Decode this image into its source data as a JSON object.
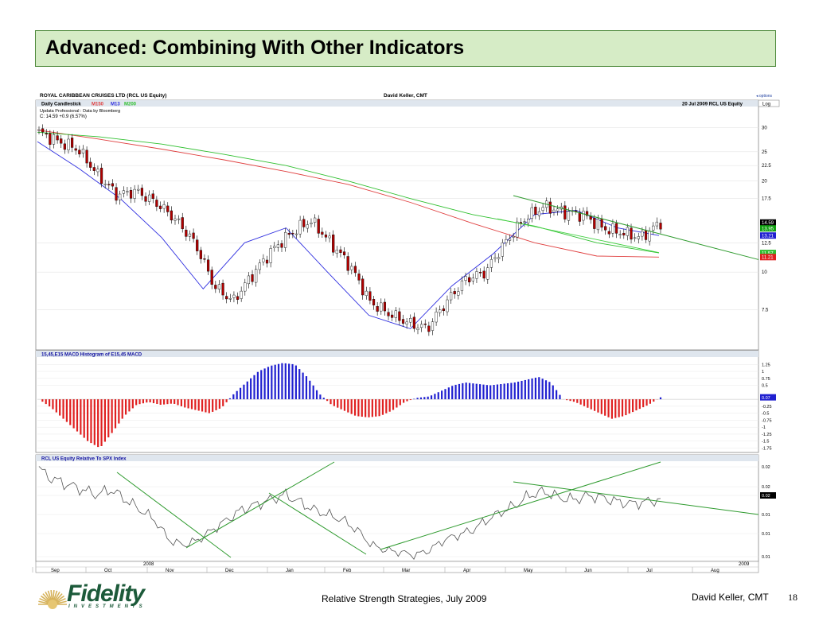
{
  "slide": {
    "title": "Advanced: Combining With Other Indicators",
    "footer_center": "Relative Strength Strategies, July 2009",
    "footer_right": "David Keller, CMT",
    "page_number": "18",
    "logo_word": "Fidelity",
    "logo_sub": "INVESTMENTS"
  },
  "colors": {
    "title_bg": "#d6ecc6",
    "title_border": "#4f8a3c",
    "up_candle": "#ffffff",
    "down_candle": "#b00000",
    "m150": "#e04040",
    "m13": "#3030e0",
    "m200": "#30c030",
    "trendline": "#2d9a2d",
    "macd_pos": "#2020d0",
    "macd_neg": "#e02020"
  },
  "chart_header": {
    "security": "ROYAL CARIBBEAN CRUISES LTD (RCL US Equity)",
    "author": "David Keller, CMT",
    "options": "◂ options",
    "chart_type": "Daily Candlestick",
    "m150_label": "M150",
    "m13_label": "M13",
    "m200_label": "M200",
    "date_stamp": "20 Jul 2009  RCL US Equity",
    "scale": "Log",
    "source": "Updata Professional : Data by Bloomberg",
    "last": "C: 14.59  +0.9 (6.57%)",
    "macd_title": "15,45,E15 MACD Histogram of E15,45 MACD",
    "rs_title": "RCL US Equity Relative To SPX Index"
  },
  "chart_data": [
    {
      "type": "candlestick",
      "title": "ROYAL CARIBBEAN CRUISES LTD (RCL US Equity)",
      "scale": "log",
      "y_ticks": [
        "30",
        "25",
        "22.5",
        "20",
        "17.5",
        "12.5",
        "10",
        "7.5"
      ],
      "y_tick_values": [
        30,
        25,
        22.5,
        20,
        17.5,
        12.5,
        10,
        7.5
      ],
      "price_tags": [
        {
          "label": "14.59",
          "value": 14.59,
          "color": "#000000"
        },
        {
          "label": "13.95",
          "value": 13.95,
          "color": "#10a010"
        },
        {
          "label": "13.21",
          "value": 13.21,
          "color": "#2020d0"
        },
        {
          "label": "11.57",
          "value": 11.57,
          "color": "#30c030"
        },
        {
          "label": "11.21",
          "value": 11.21,
          "color": "#e02020"
        }
      ],
      "ohlc_weekly_approx": [
        [
          "Sep",
          29.0
        ],
        [
          "Sep",
          27.0
        ],
        [
          "Sep",
          25.5
        ],
        [
          "Oct",
          21.0
        ],
        [
          "Oct",
          18.0
        ],
        [
          "Oct",
          18.5
        ],
        [
          "Oct",
          17.0
        ],
        [
          "Nov",
          15.0
        ],
        [
          "Nov",
          12.5
        ],
        [
          "Nov",
          9.0
        ],
        [
          "Nov",
          8.0
        ],
        [
          "Dec",
          9.8
        ],
        [
          "Dec",
          11.8
        ],
        [
          "Dec",
          13.5
        ],
        [
          "Jan",
          14.8
        ],
        [
          "Jan",
          12.5
        ],
        [
          "Jan",
          10.5
        ],
        [
          "Feb",
          8.0
        ],
        [
          "Feb",
          7.3
        ],
        [
          "Feb",
          6.8
        ],
        [
          "Mar",
          6.5
        ],
        [
          "Mar",
          8.0
        ],
        [
          "Mar",
          9.5
        ],
        [
          "Apr",
          10.0
        ],
        [
          "Apr",
          12.5
        ],
        [
          "May",
          15.0
        ],
        [
          "May",
          16.5
        ],
        [
          "May",
          15.8
        ],
        [
          "Jun",
          15.5
        ],
        [
          "Jun",
          14.0
        ],
        [
          "Jun",
          13.5
        ],
        [
          "Jul",
          13.0
        ],
        [
          "Jul",
          14.59
        ]
      ],
      "series": [
        {
          "name": "M150",
          "values": [
            29.5,
            27.5,
            25.5,
            23.5,
            21.5,
            19.5,
            17.0,
            14.5,
            12.5,
            11.3,
            11.21
          ]
        },
        {
          "name": "M13",
          "values": [
            27.0,
            22.0,
            17.5,
            13.0,
            8.8,
            12.5,
            14.0,
            10.0,
            7.2,
            6.5,
            9.0,
            11.5,
            15.5,
            16.0,
            14.0,
            13.21
          ]
        },
        {
          "name": "M200",
          "values": [
            29.0,
            28.0,
            26.5,
            24.5,
            22.5,
            20.0,
            17.5,
            15.5,
            14.2,
            12.5,
            11.57
          ]
        }
      ],
      "x_ticks": [
        "Sep",
        "Oct",
        "Nov",
        "Dec",
        "Jan",
        "Feb",
        "Mar",
        "Apr",
        "May",
        "Jun",
        "Jul",
        "Aug"
      ],
      "year_labels": [
        "2008",
        "2009"
      ]
    },
    {
      "type": "bar",
      "title": "15,45,E15 MACD Histogram of E15,45 MACD",
      "y_ticks": [
        "1.25",
        "1",
        "0.75",
        "0.5",
        "-0.25",
        "-0.5",
        "-0.75",
        "-1",
        "-1.25",
        "-1.5",
        "-1.75"
      ],
      "y_tick_values": [
        1.25,
        1,
        0.75,
        0.5,
        -0.25,
        -0.5,
        -0.75,
        -1,
        -1.25,
        -1.5,
        -1.75
      ],
      "last_label": "0.07",
      "last_value": 0.07,
      "values": [
        0.0,
        -0.3,
        -0.7,
        -1.1,
        -1.5,
        -1.75,
        -1.2,
        -0.6,
        -0.2,
        -0.1,
        -0.2,
        -0.15,
        -0.3,
        -0.4,
        -0.5,
        -0.3,
        0.2,
        0.6,
        1.0,
        1.2,
        1.3,
        1.25,
        0.8,
        0.2,
        -0.2,
        -0.4,
        -0.6,
        -0.65,
        -0.6,
        -0.4,
        -0.1,
        0.05,
        0.1,
        0.3,
        0.5,
        0.6,
        0.55,
        0.5,
        0.55,
        0.6,
        0.7,
        0.8,
        0.6,
        0.0,
        -0.1,
        -0.3,
        -0.5,
        -0.7,
        -0.6,
        -0.4,
        -0.2,
        0.07
      ]
    },
    {
      "type": "line",
      "title": "RCL US Equity Relative To SPX Index",
      "y_ticks": [
        "0.02",
        "0.02",
        "0.02",
        "0.01",
        "0.01",
        "0.01"
      ],
      "last_label": "0.02",
      "values": [
        0.02,
        0.019,
        0.0185,
        0.018,
        0.0175,
        0.018,
        0.017,
        0.016,
        0.015,
        0.013,
        0.0125,
        0.013,
        0.014,
        0.015,
        0.016,
        0.0165,
        0.017,
        0.0175,
        0.0168,
        0.016,
        0.0155,
        0.015,
        0.014,
        0.0125,
        0.012,
        0.0118,
        0.0115,
        0.012,
        0.013,
        0.0135,
        0.014,
        0.015,
        0.0158,
        0.0165,
        0.0175,
        0.0178,
        0.0172,
        0.017,
        0.0174,
        0.0172,
        0.0168,
        0.0166,
        0.0168,
        0.017
      ]
    }
  ]
}
